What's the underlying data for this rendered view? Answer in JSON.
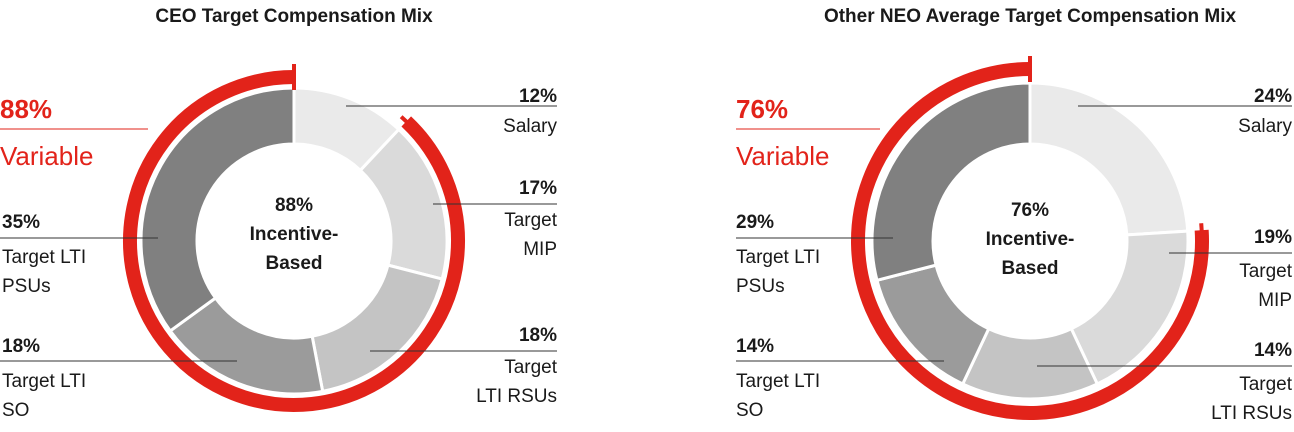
{
  "colors": {
    "accent": "#e2231a",
    "text": "#1a1a1a",
    "leader": "#333333",
    "salary": "#eaeaea",
    "mip": "#dadada",
    "rsus": "#c4c4c4",
    "so": "#9b9b9b",
    "psus": "#808080"
  },
  "chart_data": [
    {
      "type": "pie",
      "title": "CEO Target Compensation Mix",
      "center_label": [
        "88%",
        "Incentive-",
        "Based"
      ],
      "variable": {
        "value": 88,
        "pct_label": "88%",
        "label": "Variable"
      },
      "slices": [
        {
          "key": "salary",
          "value": 12,
          "pct_label": "12%",
          "label": [
            "Salary"
          ],
          "side": "right"
        },
        {
          "key": "mip",
          "value": 17,
          "pct_label": "17%",
          "label": [
            "Target",
            "MIP"
          ],
          "side": "right"
        },
        {
          "key": "rsus",
          "value": 18,
          "pct_label": "18%",
          "label": [
            "Target",
            "LTI RSUs"
          ],
          "side": "right"
        },
        {
          "key": "so",
          "value": 18,
          "pct_label": "18%",
          "label": [
            "Target LTI",
            "SO"
          ],
          "side": "left"
        },
        {
          "key": "psus",
          "value": 35,
          "pct_label": "35%",
          "label": [
            "Target LTI",
            "PSUs"
          ],
          "side": "left"
        }
      ]
    },
    {
      "type": "pie",
      "title": "Other NEO Average Target Compensation Mix",
      "center_label": [
        "76%",
        "Incentive-",
        "Based"
      ],
      "variable": {
        "value": 76,
        "pct_label": "76%",
        "label": "Variable"
      },
      "slices": [
        {
          "key": "salary",
          "value": 24,
          "pct_label": "24%",
          "label": [
            "Salary"
          ],
          "side": "right"
        },
        {
          "key": "mip",
          "value": 19,
          "pct_label": "19%",
          "label": [
            "Target",
            "MIP"
          ],
          "side": "right"
        },
        {
          "key": "rsus",
          "value": 14,
          "pct_label": "14%",
          "label": [
            "Target",
            "LTI RSUs"
          ],
          "side": "right"
        },
        {
          "key": "so",
          "value": 14,
          "pct_label": "14%",
          "label": [
            "Target LTI",
            "SO"
          ],
          "side": "left"
        },
        {
          "key": "psus",
          "value": 29,
          "pct_label": "29%",
          "label": [
            "Target LTI",
            "PSUs"
          ],
          "side": "left"
        }
      ]
    }
  ]
}
